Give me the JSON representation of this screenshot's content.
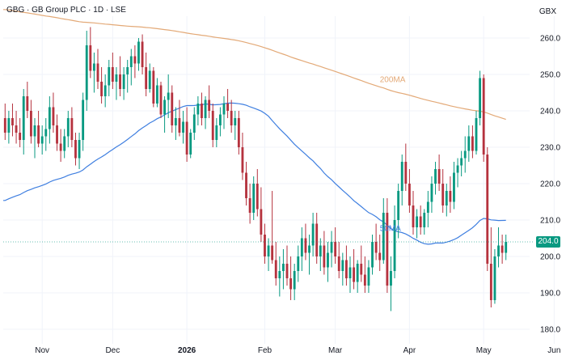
{
  "header": {
    "symbol": "GBG",
    "name": "GB Group PLC",
    "interval": "1D",
    "exchange": "LSE",
    "separator": " · "
  },
  "unit": "GBX",
  "last_price_label": "204.0",
  "colors": {
    "up": "#089981",
    "down": "#b5323e",
    "ma50": "#3f7fe0",
    "ma200": "#e3a977",
    "badge": "#089981"
  },
  "chart_data": {
    "type": "candlestick",
    "y_axis": {
      "ticks": [
        180,
        190,
        200,
        210,
        220,
        230,
        240,
        250,
        260
      ],
      "tick_labels": [
        "180.0",
        "190.0",
        "200.0",
        "210.0",
        "220.0",
        "230.0",
        "240.0",
        "250.0",
        "260.0"
      ],
      "range": [
        176,
        266
      ]
    },
    "x_axis": {
      "labels": [
        "Nov",
        "Dec",
        "2026",
        "Feb",
        "Mar",
        "Apr",
        "May",
        "Jun"
      ],
      "label_index": [
        10,
        29,
        49,
        70,
        89,
        109,
        129,
        148
      ],
      "bold": [
        false,
        false,
        true,
        false,
        false,
        false,
        false,
        false
      ]
    },
    "ohlc": [
      [
        238,
        242,
        232,
        234
      ],
      [
        234,
        240,
        231,
        238
      ],
      [
        238,
        242,
        233,
        236
      ],
      [
        236,
        240,
        231,
        234
      ],
      [
        234,
        238,
        230,
        232
      ],
      [
        232,
        246,
        228,
        244
      ],
      [
        244,
        248,
        238,
        240
      ],
      [
        240,
        243,
        231,
        233
      ],
      [
        233,
        238,
        227,
        236
      ],
      [
        236,
        240,
        230,
        231
      ],
      [
        231,
        236,
        228,
        233
      ],
      [
        233,
        238,
        229,
        235
      ],
      [
        235,
        244,
        231,
        241
      ],
      [
        241,
        245,
        234,
        236
      ],
      [
        236,
        239,
        229,
        231
      ],
      [
        231,
        235,
        226,
        229
      ],
      [
        229,
        235,
        227,
        233
      ],
      [
        233,
        240,
        230,
        238
      ],
      [
        238,
        241,
        230,
        232
      ],
      [
        232,
        234,
        225,
        227
      ],
      [
        227,
        234,
        224,
        232
      ],
      [
        232,
        245,
        229,
        243
      ],
      [
        243,
        262,
        240,
        258
      ],
      [
        258,
        263,
        249,
        251
      ],
      [
        251,
        256,
        245,
        253
      ],
      [
        253,
        257,
        246,
        248
      ],
      [
        248,
        252,
        242,
        244
      ],
      [
        244,
        250,
        241,
        247
      ],
      [
        247,
        254,
        244,
        252
      ],
      [
        252,
        256,
        246,
        248
      ],
      [
        248,
        252,
        243,
        250
      ],
      [
        250,
        255,
        244,
        246
      ],
      [
        246,
        252,
        243,
        250
      ],
      [
        250,
        254,
        245,
        252
      ],
      [
        252,
        257,
        247,
        255
      ],
      [
        255,
        258,
        249,
        253
      ],
      [
        253,
        260,
        251,
        259
      ],
      [
        259,
        261,
        250,
        252
      ],
      [
        252,
        256,
        244,
        246
      ],
      [
        246,
        253,
        245,
        251
      ],
      [
        251,
        252,
        241,
        242
      ],
      [
        242,
        249,
        241,
        247
      ],
      [
        247,
        248,
        238,
        239
      ],
      [
        239,
        244,
        234,
        243
      ],
      [
        243,
        250,
        238,
        245
      ],
      [
        245,
        247,
        234,
        236
      ],
      [
        236,
        241,
        232,
        238
      ],
      [
        238,
        243,
        233,
        234
      ],
      [
        234,
        240,
        231,
        237
      ],
      [
        237,
        241,
        226,
        228
      ],
      [
        228,
        235,
        227,
        234
      ],
      [
        234,
        241,
        232,
        239
      ],
      [
        239,
        244,
        236,
        242
      ],
      [
        242,
        245,
        236,
        238
      ],
      [
        238,
        244,
        235,
        243
      ],
      [
        243,
        247,
        238,
        240
      ],
      [
        240,
        242,
        230,
        232
      ],
      [
        232,
        238,
        230,
        236
      ],
      [
        236,
        241,
        233,
        239
      ],
      [
        239,
        244,
        235,
        242
      ],
      [
        242,
        246,
        238,
        240
      ],
      [
        240,
        243,
        234,
        236
      ],
      [
        236,
        240,
        232,
        238
      ],
      [
        238,
        240,
        228,
        230
      ],
      [
        230,
        234,
        221,
        223
      ],
      [
        223,
        226,
        214,
        216
      ],
      [
        216,
        220,
        209,
        212
      ],
      [
        212,
        222,
        210,
        220
      ],
      [
        220,
        224,
        211,
        213
      ],
      [
        213,
        219,
        204,
        206
      ],
      [
        206,
        209,
        198,
        200
      ],
      [
        200,
        205,
        196,
        203
      ],
      [
        203,
        218,
        198,
        199
      ],
      [
        199,
        204,
        192,
        194
      ],
      [
        194,
        200,
        189,
        196
      ],
      [
        196,
        202,
        191,
        198
      ],
      [
        198,
        203,
        192,
        194
      ],
      [
        194,
        200,
        188,
        191
      ],
      [
        191,
        198,
        188,
        196
      ],
      [
        196,
        203,
        193,
        200
      ],
      [
        200,
        208,
        196,
        205
      ],
      [
        205,
        209,
        199,
        201
      ],
      [
        201,
        206,
        195,
        203
      ],
      [
        203,
        212,
        200,
        209
      ],
      [
        209,
        212,
        198,
        200
      ],
      [
        200,
        205,
        196,
        203
      ],
      [
        203,
        207,
        195,
        197
      ],
      [
        197,
        204,
        193,
        201
      ],
      [
        201,
        207,
        197,
        204
      ],
      [
        204,
        208,
        198,
        200
      ],
      [
        200,
        204,
        194,
        196
      ],
      [
        196,
        201,
        192,
        199
      ],
      [
        199,
        203,
        192,
        194
      ],
      [
        194,
        200,
        190,
        197
      ],
      [
        197,
        202,
        191,
        193
      ],
      [
        193,
        199,
        190,
        198
      ],
      [
        198,
        203,
        193,
        195
      ],
      [
        195,
        200,
        190,
        192
      ],
      [
        192,
        199,
        190,
        197
      ],
      [
        197,
        206,
        195,
        204
      ],
      [
        204,
        209,
        199,
        201
      ],
      [
        201,
        206,
        196,
        199
      ],
      [
        199,
        216,
        198,
        212
      ],
      [
        212,
        216,
        190,
        192
      ],
      [
        192,
        200,
        185,
        196
      ],
      [
        196,
        214,
        194,
        210
      ],
      [
        210,
        220,
        205,
        218
      ],
      [
        218,
        228,
        214,
        226
      ],
      [
        226,
        231,
        218,
        220
      ],
      [
        220,
        224,
        212,
        214
      ],
      [
        214,
        218,
        206,
        208
      ],
      [
        208,
        213,
        205,
        211
      ],
      [
        211,
        214,
        206,
        208
      ],
      [
        208,
        213,
        206,
        212
      ],
      [
        212,
        218,
        208,
        215
      ],
      [
        215,
        222,
        212,
        220
      ],
      [
        220,
        226,
        217,
        224
      ],
      [
        224,
        228,
        218,
        220
      ],
      [
        220,
        224,
        212,
        214
      ],
      [
        214,
        220,
        211,
        218
      ],
      [
        218,
        222,
        212,
        215
      ],
      [
        215,
        226,
        213,
        223
      ],
      [
        223,
        227,
        219,
        225
      ],
      [
        225,
        229,
        222,
        227
      ],
      [
        227,
        233,
        223,
        229
      ],
      [
        229,
        236,
        226,
        233
      ],
      [
        233,
        236,
        227,
        229
      ],
      [
        229,
        240,
        228,
        238
      ],
      [
        238,
        251,
        236,
        249
      ],
      [
        249,
        250,
        226,
        228
      ],
      [
        228,
        230,
        196,
        198
      ],
      [
        198,
        208,
        186,
        188
      ],
      [
        188,
        202,
        187,
        200
      ],
      [
        200,
        208,
        197,
        203
      ],
      [
        203,
        206,
        198,
        201
      ],
      [
        201,
        206,
        199,
        204
      ]
    ],
    "ma50_start": 215,
    "ma200_start": 268,
    "series_labels": [
      "50MA",
      "200MA"
    ]
  }
}
